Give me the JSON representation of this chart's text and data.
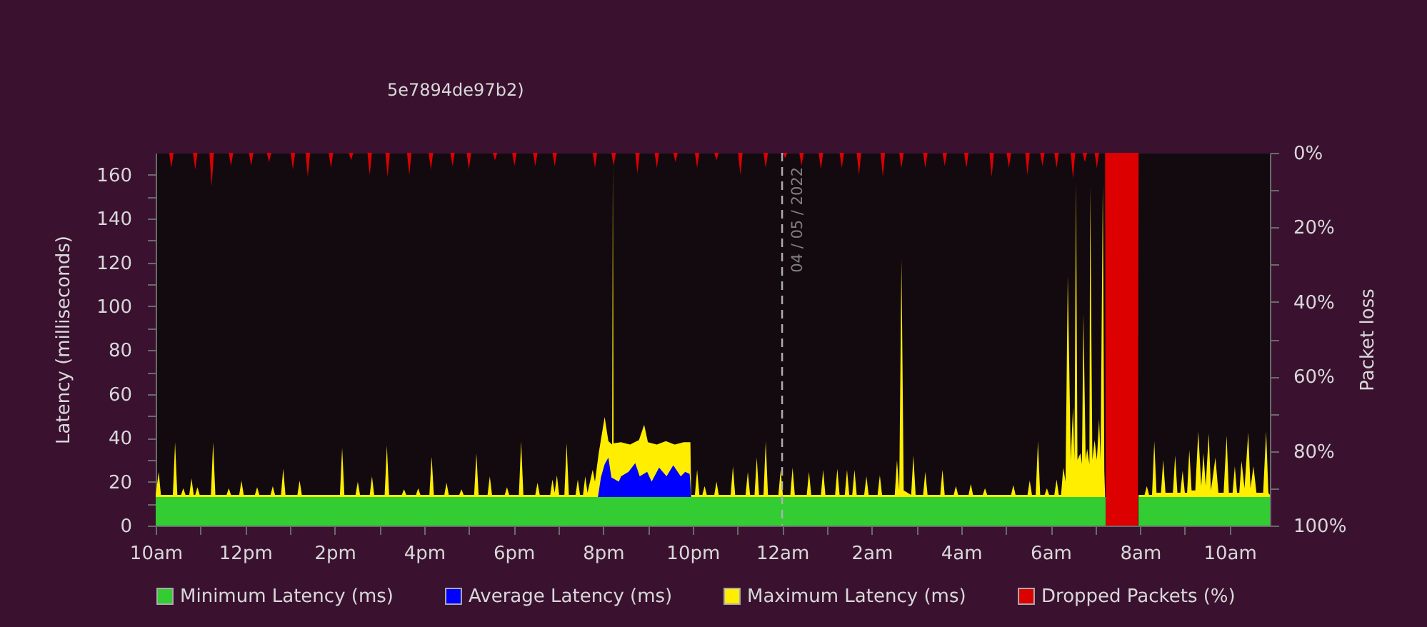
{
  "chart_data": {
    "type": "area",
    "title": "5e7894de97b2)",
    "ylabel": "Latency (milliseconds)",
    "y2label": "Packet loss",
    "xlim": [
      "2022-05-03T10:00",
      "2022-05-04T10:54"
    ],
    "xticks": [
      {
        "value": "2022-05-03T10:00",
        "label": "10am"
      },
      {
        "value": "2022-05-03T11:00",
        "label": null
      },
      {
        "value": "2022-05-03T12:00",
        "label": "12pm"
      },
      {
        "value": "2022-05-03T13:00",
        "label": null
      },
      {
        "value": "2022-05-03T14:00",
        "label": "2pm"
      },
      {
        "value": "2022-05-03T15:00",
        "label": null
      },
      {
        "value": "2022-05-03T16:00",
        "label": "4pm"
      },
      {
        "value": "2022-05-03T17:00",
        "label": null
      },
      {
        "value": "2022-05-03T18:00",
        "label": "6pm"
      },
      {
        "value": "2022-05-03T19:00",
        "label": null
      },
      {
        "value": "2022-05-03T20:00",
        "label": "8pm"
      },
      {
        "value": "2022-05-03T21:00",
        "label": null
      },
      {
        "value": "2022-05-03T22:00",
        "label": "10pm"
      },
      {
        "value": "2022-05-03T23:00",
        "label": null
      },
      {
        "value": "2022-05-04T00:00",
        "label": "12am"
      },
      {
        "value": "2022-05-04T01:00",
        "label": null
      },
      {
        "value": "2022-05-04T02:00",
        "label": "2am"
      },
      {
        "value": "2022-05-04T03:00",
        "label": null
      },
      {
        "value": "2022-05-04T04:00",
        "label": "4am"
      },
      {
        "value": "2022-05-04T05:00",
        "label": null
      },
      {
        "value": "2022-05-04T06:00",
        "label": "6am"
      },
      {
        "value": "2022-05-04T07:00",
        "label": null
      },
      {
        "value": "2022-05-04T08:00",
        "label": "8am"
      },
      {
        "value": "2022-05-04T09:00",
        "label": null
      },
      {
        "value": "2022-05-04T10:00",
        "label": "10am"
      }
    ],
    "ylim": [
      0,
      170
    ],
    "yticks": [
      0,
      {
        "value": 10,
        "label": null
      },
      20,
      {
        "value": 30,
        "label": null
      },
      40,
      {
        "value": 50,
        "label": null
      },
      60,
      {
        "value": 70,
        "label": null
      },
      80,
      {
        "value": 90,
        "label": null
      },
      100,
      {
        "value": 110,
        "label": null
      },
      120,
      {
        "value": 130,
        "label": null
      },
      140,
      {
        "value": 150,
        "label": null
      },
      160
    ],
    "y2lim": [
      100,
      0
    ],
    "y2ticks": [
      {
        "value": 0,
        "label": "0%"
      },
      {
        "value": 10,
        "label": null
      },
      {
        "value": 20,
        "label": "20%"
      },
      {
        "value": 30,
        "label": null
      },
      {
        "value": 40,
        "label": "40%"
      },
      {
        "value": 50,
        "label": null
      },
      {
        "value": 60,
        "label": "60%"
      },
      {
        "value": 70,
        "label": null
      },
      {
        "value": 80,
        "label": "80%"
      },
      {
        "value": 90,
        "label": null
      },
      {
        "value": 100,
        "label": "100%"
      }
    ],
    "legend": "bottom",
    "series": [
      {
        "name": "Minimum Latency (ms)",
        "color": "#33cc33",
        "x": [
          "2022-05-03T10:00",
          "2022-05-04T07:14",
          "2022-05-04T07:30",
          "2022-05-04T07:58",
          "2022-05-04T10:54"
        ],
        "values": [
          13,
          13,
          null,
          13,
          13
        ]
      },
      {
        "name": "Average Latency (ms)",
        "color": "#0000ff",
        "x": [
          "2022-05-03T19:53",
          "2022-05-03T19:57",
          "2022-05-03T20:02",
          "2022-05-03T20:07",
          "2022-05-03T20:11",
          "2022-05-03T20:21",
          "2022-05-03T20:24",
          "2022-05-03T20:34",
          "2022-05-03T20:43",
          "2022-05-03T20:49",
          "2022-05-03T20:59",
          "2022-05-03T21:05",
          "2022-05-03T21:15",
          "2022-05-03T21:25",
          "2022-05-03T21:34",
          "2022-05-03T21:44",
          "2022-05-03T21:50",
          "2022-05-03T21:56",
          "2022-05-03T21:58"
        ],
        "values": [
          13,
          22,
          28,
          31,
          22,
          20,
          22.5,
          24.5,
          28.5,
          22.5,
          24.5,
          20,
          26.5,
          22.5,
          27.5,
          22.5,
          24.5,
          23.5,
          13
        ]
      },
      {
        "name": "Maximum Latency (ms)",
        "color": "#ffee00",
        "x": [
          "2022-05-03T10:00",
          "2022-05-03T10:04",
          "2022-05-03T10:07",
          "2022-05-03T10:23",
          "2022-05-03T10:26",
          "2022-05-03T10:29",
          "2022-05-03T10:34",
          "2022-05-03T10:37",
          "2022-05-03T10:40",
          "2022-05-03T10:45",
          "2022-05-03T10:48",
          "2022-05-03T10:51",
          "2022-05-03T10:53",
          "2022-05-03T10:56",
          "2022-05-03T10:59",
          "2022-05-03T11:14",
          "2022-05-03T11:17",
          "2022-05-03T11:20",
          "2022-05-03T11:35",
          "2022-05-03T11:38",
          "2022-05-03T11:41",
          "2022-05-03T11:52",
          "2022-05-03T11:55",
          "2022-05-03T11:58",
          "2022-05-03T12:13",
          "2022-05-03T12:16",
          "2022-05-03T12:19",
          "2022-05-03T12:34",
          "2022-05-03T12:37",
          "2022-05-03T12:40",
          "2022-05-03T12:48",
          "2022-05-03T12:51",
          "2022-05-03T12:54",
          "2022-05-03T13:10",
          "2022-05-03T13:13",
          "2022-05-03T13:16",
          "2022-05-03T14:07",
          "2022-05-03T14:10",
          "2022-05-03T14:13",
          "2022-05-03T14:28",
          "2022-05-03T14:31",
          "2022-05-03T14:34",
          "2022-05-03T14:47",
          "2022-05-03T14:50",
          "2022-05-03T14:53",
          "2022-05-03T15:07",
          "2022-05-03T15:10",
          "2022-05-03T15:13",
          "2022-05-03T15:30",
          "2022-05-03T15:33",
          "2022-05-03T15:36",
          "2022-05-03T15:49",
          "2022-05-03T15:52",
          "2022-05-03T15:55",
          "2022-05-03T16:07",
          "2022-05-03T16:10",
          "2022-05-03T16:13",
          "2022-05-03T16:27",
          "2022-05-03T16:30",
          "2022-05-03T16:33",
          "2022-05-03T16:47",
          "2022-05-03T16:50",
          "2022-05-03T16:53",
          "2022-05-03T17:07",
          "2022-05-03T17:10",
          "2022-05-03T17:13",
          "2022-05-03T17:25",
          "2022-05-03T17:28",
          "2022-05-03T17:31",
          "2022-05-03T17:48",
          "2022-05-03T17:51",
          "2022-05-03T17:54",
          "2022-05-03T18:07",
          "2022-05-03T18:10",
          "2022-05-03T18:13",
          "2022-05-03T18:29",
          "2022-05-03T18:32",
          "2022-05-03T18:35",
          "2022-05-03T18:49",
          "2022-05-03T18:52",
          "2022-05-03T18:55",
          "2022-05-03T18:58",
          "2022-05-03T19:01",
          "2022-05-03T19:08",
          "2022-05-03T19:11",
          "2022-05-03T19:14",
          "2022-05-03T19:23",
          "2022-05-03T19:26",
          "2022-05-03T19:29",
          "2022-05-03T19:33",
          "2022-05-03T19:36",
          "2022-05-03T19:39",
          "2022-05-03T19:46",
          "2022-05-03T19:49",
          "2022-05-03T19:54",
          "2022-05-03T20:02",
          "2022-05-03T20:07",
          "2022-05-03T20:12",
          "2022-05-03T20:13",
          "2022-05-03T20:14",
          "2022-05-03T20:24",
          "2022-05-03T20:36",
          "2022-05-03T20:48",
          "2022-05-03T20:55",
          "2022-05-03T21:00",
          "2022-05-03T21:12",
          "2022-05-03T21:24",
          "2022-05-03T21:36",
          "2022-05-03T21:48",
          "2022-05-03T21:57",
          "2022-05-03T21:58",
          "2022-05-03T22:03",
          "2022-05-03T22:06",
          "2022-05-03T22:09",
          "2022-05-03T22:13",
          "2022-05-03T22:16",
          "2022-05-03T22:19",
          "2022-05-03T22:29",
          "2022-05-03T22:32",
          "2022-05-03T22:35",
          "2022-05-03T22:51",
          "2022-05-03T22:54",
          "2022-05-03T22:57",
          "2022-05-03T23:11",
          "2022-05-03T23:14",
          "2022-05-03T23:17",
          "2022-05-03T23:23",
          "2022-05-03T23:26",
          "2022-05-03T23:29",
          "2022-05-03T23:35",
          "2022-05-03T23:38",
          "2022-05-03T23:41",
          "2022-05-03T23:55",
          "2022-05-03T23:58",
          "2022-05-04T00:01",
          "2022-05-04T00:11",
          "2022-05-04T00:14",
          "2022-05-04T00:17",
          "2022-05-04T00:33",
          "2022-05-04T00:36",
          "2022-05-04T00:39",
          "2022-05-04T00:52",
          "2022-05-04T00:55",
          "2022-05-04T00:58",
          "2022-05-04T01:11",
          "2022-05-04T01:14",
          "2022-05-04T01:17",
          "2022-05-04T01:24",
          "2022-05-04T01:27",
          "2022-05-04T01:30",
          "2022-05-04T01:34",
          "2022-05-04T01:37",
          "2022-05-04T01:40",
          "2022-05-04T01:50",
          "2022-05-04T01:53",
          "2022-05-04T01:56",
          "2022-05-04T02:08",
          "2022-05-04T02:11",
          "2022-05-04T02:14",
          "2022-05-04T02:31",
          "2022-05-04T02:34",
          "2022-05-04T02:37",
          "2022-05-04T02:40",
          "2022-05-04T02:43",
          "2022-05-04T02:53",
          "2022-05-04T02:56",
          "2022-05-04T02:59",
          "2022-05-04T03:09",
          "2022-05-04T03:12",
          "2022-05-04T03:15",
          "2022-05-04T03:32",
          "2022-05-04T03:35",
          "2022-05-04T03:38",
          "2022-05-04T03:50",
          "2022-05-04T03:53",
          "2022-05-04T03:56",
          "2022-05-04T04:10",
          "2022-05-04T04:13",
          "2022-05-04T04:16",
          "2022-05-04T04:29",
          "2022-05-04T04:32",
          "2022-05-04T04:35",
          "2022-05-04T05:07",
          "2022-05-04T05:10",
          "2022-05-04T05:13",
          "2022-05-04T05:29",
          "2022-05-04T05:32",
          "2022-05-04T05:35",
          "2022-05-04T05:40",
          "2022-05-04T05:43",
          "2022-05-04T05:46",
          "2022-05-04T05:52",
          "2022-05-04T05:55",
          "2022-05-04T05:58",
          "2022-05-04T06:05",
          "2022-05-04T06:08",
          "2022-05-04T06:11",
          "2022-05-04T06:14",
          "2022-05-04T06:17",
          "2022-05-04T06:20",
          "2022-05-04T06:23",
          "2022-05-04T06:27",
          "2022-05-04T06:30",
          "2022-05-04T06:32",
          "2022-05-04T06:34",
          "2022-05-04T06:36",
          "2022-05-04T06:40",
          "2022-05-04T06:42",
          "2022-05-04T06:44",
          "2022-05-04T06:47",
          "2022-05-04T06:49",
          "2022-05-04T06:52",
          "2022-05-04T06:53",
          "2022-05-04T06:56",
          "2022-05-04T06:59",
          "2022-05-04T07:02",
          "2022-05-04T07:05",
          "2022-05-04T07:07",
          "2022-05-04T07:10",
          "2022-05-04T07:12",
          "2022-05-04T07:13",
          "2022-05-04T07:30",
          "2022-05-04T07:58",
          "2022-05-04T08:06",
          "2022-05-04T08:09",
          "2022-05-04T08:12",
          "2022-05-04T08:16",
          "2022-05-04T08:19",
          "2022-05-04T08:22",
          "2022-05-04T08:28",
          "2022-05-04T08:31",
          "2022-05-04T08:34",
          "2022-05-04T08:44",
          "2022-05-04T08:47",
          "2022-05-04T08:50",
          "2022-05-04T08:54",
          "2022-05-04T08:57",
          "2022-05-04T09:00",
          "2022-05-04T09:03",
          "2022-05-04T09:06",
          "2022-05-04T09:09",
          "2022-05-04T09:14",
          "2022-05-04T09:18",
          "2022-05-04T09:22",
          "2022-05-04T09:25",
          "2022-05-04T09:28",
          "2022-05-04T09:32",
          "2022-05-04T09:35",
          "2022-05-04T09:41",
          "2022-05-04T09:45",
          "2022-05-04T09:52",
          "2022-05-04T09:56",
          "2022-05-04T09:59",
          "2022-05-04T10:04",
          "2022-05-04T10:07",
          "2022-05-04T10:10",
          "2022-05-04T10:13",
          "2022-05-04T10:16",
          "2022-05-04T10:20",
          "2022-05-04T10:25",
          "2022-05-04T10:28",
          "2022-05-04T10:32",
          "2022-05-04T10:36",
          "2022-05-04T10:45",
          "2022-05-04T10:49",
          "2022-05-04T10:52",
          "2022-05-04T10:54"
        ],
        "values": [
          14,
          24.5,
          14,
          14,
          38,
          14,
          14,
          17,
          14,
          14,
          21.5,
          14,
          14,
          17.5,
          14,
          14,
          38,
          14,
          14,
          17,
          14,
          14,
          20.5,
          14,
          14,
          17.5,
          14,
          14,
          18,
          14,
          14,
          26,
          14,
          14,
          20.5,
          14,
          14,
          35.5,
          14,
          14,
          20,
          14,
          14,
          22.5,
          14,
          14,
          36.5,
          14,
          14,
          16.5,
          14,
          14,
          17,
          14,
          14,
          31.5,
          14,
          14,
          19.5,
          14,
          14,
          16.5,
          14,
          14,
          33,
          14,
          14,
          22.5,
          14,
          14,
          17.5,
          14,
          14,
          38.5,
          14,
          14,
          19.5,
          14,
          14,
          21,
          15,
          23,
          14,
          14,
          37.5,
          14,
          14,
          21,
          14,
          14,
          22.5,
          15,
          25.5,
          20,
          33,
          49.5,
          38.5,
          37,
          165,
          37.5,
          38,
          37,
          39,
          46,
          38,
          37,
          38.5,
          37,
          38,
          38,
          14,
          14,
          25.5,
          14,
          14,
          18,
          14,
          14,
          20,
          14,
          14,
          27,
          14,
          14,
          24.5,
          14,
          14,
          31,
          14,
          14,
          38.5,
          14,
          14,
          25.5,
          14,
          14,
          26.5,
          14,
          14,
          24.5,
          14,
          14,
          25.5,
          14,
          14,
          26,
          14,
          14,
          25.5,
          14,
          14,
          25.5,
          14,
          14,
          22.5,
          14,
          14,
          23,
          14,
          14,
          30,
          16,
          121.5,
          16,
          14,
          32,
          14,
          14,
          24.5,
          14,
          14,
          25.5,
          14,
          14,
          18,
          14,
          14,
          19,
          14,
          14,
          17,
          14,
          14,
          18.5,
          14,
          14,
          20.5,
          14,
          14,
          38.5,
          14,
          14,
          17,
          14,
          14,
          21,
          14,
          14,
          26.5,
          20,
          114,
          30,
          54,
          30,
          156.5,
          30,
          33,
          28,
          96.5,
          30,
          35,
          28,
          154.5,
          30,
          39,
          30,
          48.5,
          30,
          155.5,
          25,
          14,
          null,
          14,
          14,
          18,
          14,
          14,
          38.5,
          15,
          15,
          30,
          15,
          15,
          32,
          15,
          15,
          25,
          15,
          15,
          34.5,
          16,
          16,
          43,
          18,
          33,
          18,
          42,
          16,
          31,
          15,
          15,
          41,
          15,
          15,
          27,
          15,
          15,
          29.5,
          17,
          42.5,
          17,
          27,
          15,
          15,
          43,
          15,
          14
        ]
      },
      {
        "name": "Dropped Packets (%)",
        "color": "#dd0000",
        "axis": "y2",
        "x": [
          "2022-05-03T10:00",
          "2022-05-03T10:18",
          "2022-05-03T10:21",
          "2022-05-03T10:24",
          "2022-05-03T10:50",
          "2022-05-03T10:53",
          "2022-05-03T10:56",
          "2022-05-03T11:12",
          "2022-05-03T11:15",
          "2022-05-03T11:18",
          "2022-05-03T11:38",
          "2022-05-03T11:41",
          "2022-05-03T11:44",
          "2022-05-03T12:05",
          "2022-05-03T12:08",
          "2022-05-03T12:11",
          "2022-05-03T12:29",
          "2022-05-03T12:32",
          "2022-05-03T12:35",
          "2022-05-03T13:01",
          "2022-05-03T13:04",
          "2022-05-03T13:07",
          "2022-05-03T13:21",
          "2022-05-03T13:24",
          "2022-05-03T13:27",
          "2022-05-03T13:52",
          "2022-05-03T13:55",
          "2022-05-03T13:58",
          "2022-05-03T14:19",
          "2022-05-03T14:22",
          "2022-05-03T14:25",
          "2022-05-03T14:44",
          "2022-05-03T14:47",
          "2022-05-03T14:50",
          "2022-05-03T15:08",
          "2022-05-03T15:11",
          "2022-05-03T15:14",
          "2022-05-03T15:37",
          "2022-05-03T15:40",
          "2022-05-03T15:43",
          "2022-05-03T16:06",
          "2022-05-03T16:09",
          "2022-05-03T16:12",
          "2022-05-03T16:35",
          "2022-05-03T16:38",
          "2022-05-03T16:41",
          "2022-05-03T16:57",
          "2022-05-03T17:00",
          "2022-05-03T17:03",
          "2022-05-03T17:32",
          "2022-05-03T17:35",
          "2022-05-03T17:38",
          "2022-05-03T17:58",
          "2022-05-03T18:01",
          "2022-05-03T18:04",
          "2022-05-03T18:26",
          "2022-05-03T18:29",
          "2022-05-03T18:32",
          "2022-05-03T18:52",
          "2022-05-03T18:55",
          "2022-05-03T18:58",
          "2022-05-03T19:46",
          "2022-05-03T19:49",
          "2022-05-03T19:52",
          "2022-05-03T20:11",
          "2022-05-03T20:14",
          "2022-05-03T20:17",
          "2022-05-03T20:43",
          "2022-05-03T20:46",
          "2022-05-03T20:49",
          "2022-05-03T21:09",
          "2022-05-03T21:12",
          "2022-05-03T21:15",
          "2022-05-03T21:34",
          "2022-05-03T21:37",
          "2022-05-03T21:40",
          "2022-05-03T22:03",
          "2022-05-03T22:06",
          "2022-05-03T22:09",
          "2022-05-03T22:29",
          "2022-05-03T22:32",
          "2022-05-03T22:35",
          "2022-05-03T23:01",
          "2022-05-03T23:04",
          "2022-05-03T23:07",
          "2022-05-03T23:35",
          "2022-05-03T23:38",
          "2022-05-03T23:41",
          "2022-05-04T00:01",
          "2022-05-04T00:04",
          "2022-05-04T00:07",
          "2022-05-04T00:23",
          "2022-05-04T00:26",
          "2022-05-04T00:29",
          "2022-05-04T00:49",
          "2022-05-04T00:52",
          "2022-05-04T00:55",
          "2022-05-04T01:17",
          "2022-05-04T01:20",
          "2022-05-04T01:23",
          "2022-05-04T01:40",
          "2022-05-04T01:43",
          "2022-05-04T01:46",
          "2022-05-04T02:12",
          "2022-05-04T02:15",
          "2022-05-04T02:18",
          "2022-05-04T02:37",
          "2022-05-04T02:40",
          "2022-05-04T02:43",
          "2022-05-04T03:09",
          "2022-05-04T03:12",
          "2022-05-04T03:15",
          "2022-05-04T03:35",
          "2022-05-04T03:38",
          "2022-05-04T03:41",
          "2022-05-04T04:04",
          "2022-05-04T04:07",
          "2022-05-04T04:10",
          "2022-05-04T04:38",
          "2022-05-04T04:41",
          "2022-05-04T04:44",
          "2022-05-04T05:01",
          "2022-05-04T05:04",
          "2022-05-04T05:07",
          "2022-05-04T05:26",
          "2022-05-04T05:29",
          "2022-05-04T05:32",
          "2022-05-04T05:46",
          "2022-05-04T05:49",
          "2022-05-04T05:52",
          "2022-05-04T06:05",
          "2022-05-04T06:08",
          "2022-05-04T06:11",
          "2022-05-04T06:27",
          "2022-05-04T06:30",
          "2022-05-04T06:33",
          "2022-05-04T06:43",
          "2022-05-04T06:46",
          "2022-05-04T06:49",
          "2022-05-04T06:59",
          "2022-05-04T07:02",
          "2022-05-04T07:05",
          "2022-05-04T07:13",
          "2022-05-04T07:14",
          "2022-05-04T07:57",
          "2022-05-04T07:58",
          "2022-05-04T10:54"
        ],
        "values": [
          0,
          0,
          4,
          0,
          0,
          4.5,
          0,
          0,
          9,
          0,
          0,
          3.5,
          0,
          0,
          3.5,
          0,
          0,
          2.5,
          0,
          0,
          4.5,
          0,
          0,
          6.5,
          0,
          0,
          4,
          0,
          0,
          2,
          0,
          0,
          6,
          0,
          0,
          6.5,
          0,
          0,
          6,
          0,
          0,
          4.5,
          0,
          0,
          3.5,
          0,
          0,
          4.5,
          0,
          0,
          2,
          0,
          0,
          3.5,
          0,
          0,
          3.5,
          0,
          0,
          3.5,
          0,
          0,
          4,
          0,
          0,
          3.5,
          0,
          0,
          5.5,
          0,
          0,
          4,
          0,
          0,
          2.5,
          0,
          0,
          4,
          0,
          0,
          2,
          0,
          0,
          6,
          0,
          0,
          4,
          0,
          0,
          1.5,
          0,
          0,
          3.5,
          0,
          0,
          4.5,
          0,
          0,
          4,
          0,
          0,
          6,
          0,
          0,
          6.5,
          0,
          0,
          4,
          0,
          0,
          4,
          0,
          0,
          3.5,
          0,
          0,
          4,
          0,
          0,
          6.5,
          0,
          0,
          4,
          0,
          0,
          6,
          0,
          0,
          3.5,
          0,
          0,
          4,
          0,
          0,
          7,
          0,
          0,
          2.5,
          0,
          0,
          4,
          0,
          0,
          100,
          100,
          0,
          0
        ]
      }
    ],
    "ref_lines": [
      {
        "axis": "x",
        "value": "2022-05-04",
        "label": "04 / 05 / 2022",
        "color": "#b0b0b0",
        "line_style": "dashed"
      }
    ]
  }
}
